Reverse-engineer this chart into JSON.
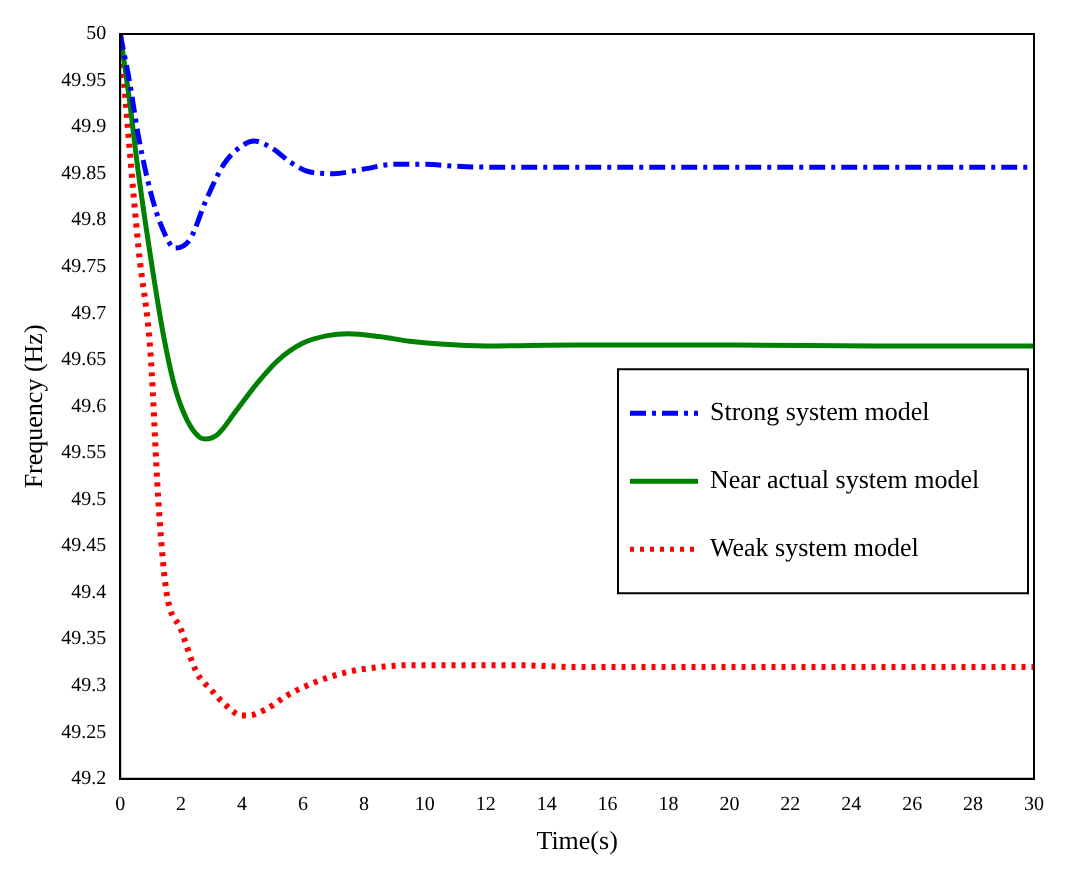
{
  "chart_data": {
    "type": "line",
    "xlabel": "Time(s)",
    "ylabel": "Frequency (Hz)",
    "xlim": [
      0,
      30
    ],
    "ylim": [
      49.2,
      50
    ],
    "xticks": [
      0,
      2,
      4,
      6,
      8,
      10,
      12,
      14,
      16,
      18,
      20,
      22,
      24,
      26,
      28,
      30
    ],
    "yticks": [
      49.2,
      49.25,
      49.3,
      49.35,
      49.4,
      49.45,
      49.5,
      49.55,
      49.6,
      49.65,
      49.7,
      49.75,
      49.8,
      49.85,
      49.9,
      49.95,
      50
    ],
    "grid": false,
    "legend": "right",
    "marker": "none",
    "series": [
      {
        "name": "Strong system model",
        "color": "#0000ff",
        "line_style": "dashdot",
        "x": [
          0,
          0.3,
          0.6,
          1,
          1.4,
          1.8,
          2.3,
          2.8,
          3.4,
          4,
          4.4,
          5,
          5.6,
          6.2,
          7,
          8,
          9,
          10,
          11,
          12,
          15,
          20,
          25,
          30
        ],
        "values": [
          50,
          49.95,
          49.89,
          49.83,
          49.79,
          49.77,
          49.78,
          49.82,
          49.86,
          49.88,
          49.885,
          49.877,
          49.862,
          49.852,
          49.85,
          49.855,
          49.86,
          49.86,
          49.858,
          49.857,
          49.857,
          49.857,
          49.857,
          49.857
        ]
      },
      {
        "name": "Near actual system model",
        "color": "#008000",
        "line_style": "solid",
        "x": [
          0,
          0.3,
          0.6,
          1,
          1.4,
          1.8,
          2.2,
          2.6,
          2.8,
          3.2,
          3.8,
          4.5,
          5.2,
          6,
          6.8,
          7.5,
          8.5,
          9.5,
          10.5,
          12,
          15,
          20,
          25,
          30
        ],
        "values": [
          50,
          49.93,
          49.85,
          49.76,
          49.68,
          49.62,
          49.585,
          49.567,
          49.565,
          49.57,
          49.595,
          49.625,
          49.65,
          49.668,
          49.676,
          49.678,
          49.675,
          49.67,
          49.667,
          49.665,
          49.666,
          49.666,
          49.665,
          49.665
        ]
      },
      {
        "name": "Weak system model",
        "color": "#ff0000",
        "line_style": "dotted",
        "x": [
          0,
          0.3,
          0.6,
          1,
          1.25,
          1.5,
          2,
          2.5,
          3,
          3.5,
          4,
          4.2,
          4.8,
          5.5,
          6.5,
          7.5,
          8.5,
          9.5,
          11,
          13,
          15,
          20,
          25,
          30
        ],
        "values": [
          50,
          49.88,
          49.77,
          49.655,
          49.5,
          49.405,
          49.36,
          49.315,
          49.295,
          49.278,
          49.268,
          49.268,
          49.275,
          49.29,
          49.305,
          49.315,
          49.32,
          49.322,
          49.322,
          49.322,
          49.32,
          49.32,
          49.32,
          49.32
        ]
      }
    ]
  }
}
